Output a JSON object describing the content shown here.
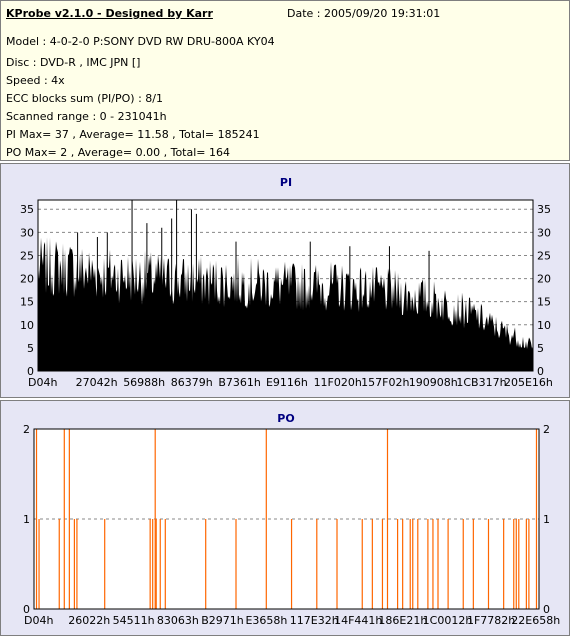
{
  "info": {
    "title": "KProbe v2.1.0 - Designed by Karr",
    "date": "Date : 2005/09/20 19:31:01",
    "lines": [
      "Model : 4-0-2-0 P:SONY    DVD RW DRU-800A  KY04",
      "Disc : DVD-R , IMC JPN []",
      "Speed : 4x",
      "ECC blocks sum (PI/PO) : 8/1",
      "Scanned range : 0 - 231041h",
      "PI Max= 37 , Average= 11.58 , Total= 185241",
      "PO Max= 2 , Average= 0.00 , Total= 164"
    ]
  },
  "chart_data": [
    {
      "type": "bar",
      "title": "PI",
      "ylim": [
        0,
        37
      ],
      "yticks": [
        0,
        5,
        10,
        15,
        20,
        25,
        30,
        35
      ],
      "xticks": [
        "D04h",
        "27042h",
        "56988h",
        "86379h",
        "B7361h",
        "E9116h",
        "11F020h",
        "157F02h",
        "190908h",
        "1CB317h",
        "205E16h"
      ],
      "grid": true,
      "color": "#000000",
      "envelope": [
        [
          0,
          22
        ],
        [
          0.05,
          22
        ],
        [
          0.1,
          21
        ],
        [
          0.2,
          20
        ],
        [
          0.3,
          19
        ],
        [
          0.4,
          19
        ],
        [
          0.5,
          18
        ],
        [
          0.6,
          18
        ],
        [
          0.7,
          17
        ],
        [
          0.8,
          15
        ],
        [
          0.88,
          12
        ],
        [
          0.93,
          9
        ],
        [
          0.97,
          7
        ],
        [
          1.0,
          5
        ]
      ],
      "spikes": [
        [
          0.19,
          37
        ],
        [
          0.28,
          37
        ],
        [
          0.31,
          35
        ],
        [
          0.32,
          34
        ],
        [
          0.22,
          32
        ],
        [
          0.25,
          31
        ],
        [
          0.27,
          33
        ],
        [
          0.12,
          29
        ],
        [
          0.08,
          30
        ],
        [
          0.4,
          28
        ],
        [
          0.63,
          27
        ],
        [
          0.71,
          27
        ],
        [
          0.79,
          26
        ],
        [
          0.55,
          28
        ],
        [
          0.14,
          30
        ]
      ]
    },
    {
      "type": "bar",
      "title": "PO",
      "ylim": [
        0,
        2
      ],
      "yticks": [
        0,
        1,
        2
      ],
      "xticks": [
        "D04h",
        "26022h",
        "54511h",
        "83063h",
        "B2971h",
        "E3658h",
        "117E32h",
        "14F441h",
        "186E21h",
        "1C0012h",
        "1F7782h",
        "22E658h"
      ],
      "grid": true,
      "color": "#ff6600",
      "points": [
        [
          0.005,
          2
        ],
        [
          0.06,
          2
        ],
        [
          0.07,
          2
        ],
        [
          0.24,
          2
        ],
        [
          0.46,
          2
        ],
        [
          0.7,
          2
        ],
        [
          0.995,
          2
        ],
        [
          0.01,
          1
        ],
        [
          0.05,
          1
        ],
        [
          0.08,
          1
        ],
        [
          0.085,
          1
        ],
        [
          0.14,
          1
        ],
        [
          0.23,
          1
        ],
        [
          0.235,
          1
        ],
        [
          0.242,
          1
        ],
        [
          0.25,
          1
        ],
        [
          0.26,
          1
        ],
        [
          0.34,
          1
        ],
        [
          0.4,
          1
        ],
        [
          0.51,
          1
        ],
        [
          0.56,
          1
        ],
        [
          0.6,
          1
        ],
        [
          0.65,
          1
        ],
        [
          0.67,
          1
        ],
        [
          0.69,
          1
        ],
        [
          0.72,
          1
        ],
        [
          0.73,
          1
        ],
        [
          0.745,
          1
        ],
        [
          0.75,
          1
        ],
        [
          0.76,
          1
        ],
        [
          0.78,
          1
        ],
        [
          0.79,
          1
        ],
        [
          0.8,
          1
        ],
        [
          0.82,
          1
        ],
        [
          0.85,
          1
        ],
        [
          0.87,
          1
        ],
        [
          0.9,
          1
        ],
        [
          0.93,
          1
        ],
        [
          0.95,
          1
        ],
        [
          0.955,
          1
        ],
        [
          0.96,
          1
        ],
        [
          0.975,
          1
        ],
        [
          0.98,
          1
        ]
      ]
    }
  ]
}
